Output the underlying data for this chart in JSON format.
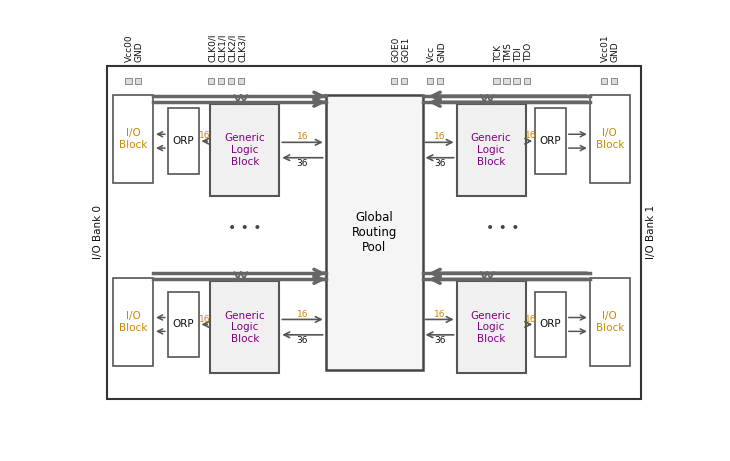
{
  "bg": "#ffffff",
  "ec_main": "#555555",
  "ec_dark": "#333333",
  "ec_glb": "#666666",
  "fc_white": "#ffffff",
  "fc_glb": "#f0f0f0",
  "fc_grp": "#f5f5f5",
  "fc_pin": "#cccccc",
  "col_io": "#cc8800",
  "col_glb_text": "#800080",
  "col_num": "#cc8800",
  "col_black": "#111111",
  "col_arrow": "#555555",
  "col_bus": "#666666",
  "side_left": "I/O Bank 0",
  "side_right": "I/O Bank 1",
  "top_left_pins": [
    "Vcc00",
    "GND"
  ],
  "top_clk_pins": [
    "CLK0/I",
    "CLK1/I",
    "CLK2/I",
    "CLK3/I"
  ],
  "top_goe_pins": [
    "GOE0",
    "GOE1"
  ],
  "top_vcc_pins": [
    "Vcc",
    "GND"
  ],
  "top_jtag_pins": [
    "TCK",
    "TMS",
    "TDI",
    "TDO"
  ],
  "top_right_pins": [
    "Vcc01",
    "GND"
  ],
  "grp_text": "Global\nRouting\nPool",
  "io_text": "I/O\nBlock",
  "orp_text": "ORP",
  "glb_text": "Generic\nLogic\nBlock",
  "num_16": "16",
  "num_36": "36",
  "dots": "• • •"
}
